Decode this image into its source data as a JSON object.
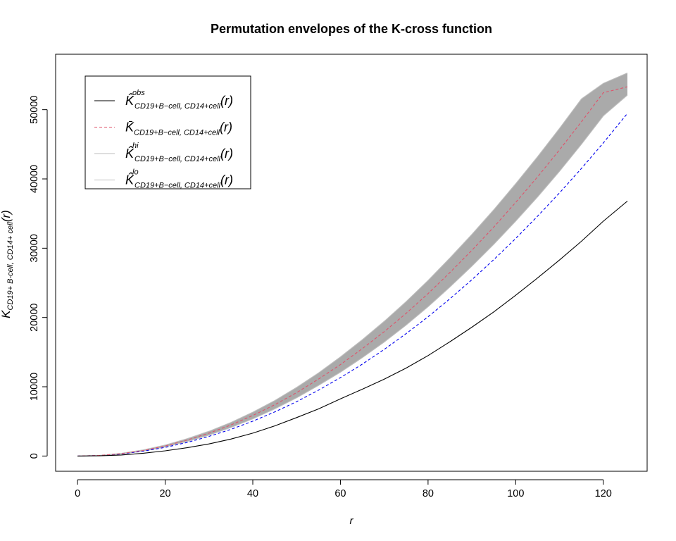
{
  "chart_data": {
    "type": "line",
    "title": "Permutation envelopes of the K-cross function",
    "xlabel": "r",
    "ylabel": {
      "main": "K",
      "sub": "CD19+ B-cell, CD14+ cell",
      "tail": "(r)"
    },
    "xlim": [
      -5,
      130
    ],
    "ylim": [
      -2200,
      58000
    ],
    "x_ticks": [
      0,
      20,
      40,
      60,
      80,
      100,
      120
    ],
    "y_ticks": [
      0,
      10000,
      20000,
      30000,
      40000,
      50000
    ],
    "grid": false,
    "legend_position": "top-left",
    "x": [
      0,
      5,
      10,
      15,
      20,
      25,
      30,
      35,
      40,
      45,
      50,
      55,
      60,
      65,
      70,
      75,
      80,
      85,
      90,
      95,
      100,
      105,
      110,
      115,
      120,
      125.5
    ],
    "series": [
      {
        "key": "obs",
        "legend": {
          "main": "K̂",
          "sup": "obs",
          "sub": "CD19+B−cell, CD14+cell",
          "tail": "(r)"
        },
        "color": "#000000",
        "dash": "solid",
        "values": [
          0,
          30,
          150,
          400,
          750,
          1200,
          1750,
          2450,
          3300,
          4350,
          5550,
          6800,
          8250,
          9650,
          11100,
          12700,
          14500,
          16500,
          18600,
          20800,
          23200,
          25700,
          28300,
          31000,
          33900,
          36800
        ]
      },
      {
        "key": "theo",
        "legend": null,
        "color": "#0000ee",
        "dash": "dashed",
        "values": [
          0,
          80,
          300,
          700,
          1250,
          1960,
          2830,
          3850,
          5030,
          6360,
          7850,
          9500,
          11310,
          13270,
          15390,
          17670,
          20100,
          22700,
          25450,
          28350,
          31400,
          34620,
          37990,
          41520,
          45200,
          49460
        ]
      },
      {
        "key": "mean",
        "legend": {
          "main": "K̄",
          "sup": "",
          "sub": "CD19+B−cell, CD14+cell",
          "tail": "(r)"
        },
        "color": "#df536b",
        "dash": "dashed",
        "values": [
          0,
          90,
          340,
          800,
          1450,
          2300,
          3300,
          4480,
          5850,
          7400,
          9150,
          11100,
          13200,
          15500,
          17950,
          20600,
          23450,
          26500,
          29700,
          33050,
          36600,
          40300,
          44200,
          48250,
          52450,
          53300
        ]
      },
      {
        "key": "hi",
        "legend": {
          "main": "K̂",
          "sup": "hi",
          "sub": "CD19+B−cell, CD14+cell",
          "tail": "(r)"
        },
        "color": "#bebebe",
        "dash": "solid",
        "values": [
          0,
          100,
          380,
          880,
          1580,
          2500,
          3580,
          4850,
          6330,
          8000,
          9900,
          12000,
          14300,
          16800,
          19450,
          22300,
          25350,
          28600,
          32000,
          35550,
          39300,
          43200,
          47300,
          51550,
          53800,
          55300
        ]
      },
      {
        "key": "lo",
        "legend": {
          "main": "K̂",
          "sup": "lo",
          "sub": "CD19+B−cell, CD14+cell",
          "tail": "(r)"
        },
        "color": "#bebebe",
        "dash": "solid",
        "values": [
          0,
          80,
          300,
          720,
          1320,
          2100,
          3020,
          4110,
          5370,
          6800,
          8400,
          10200,
          12100,
          14200,
          16450,
          18900,
          21550,
          24400,
          27400,
          30550,
          33900,
          37400,
          41100,
          45000,
          49100,
          52100
        ]
      }
    ],
    "envelope": {
      "lower": "lo",
      "upper": "hi",
      "color": "#aaaaaa"
    }
  }
}
